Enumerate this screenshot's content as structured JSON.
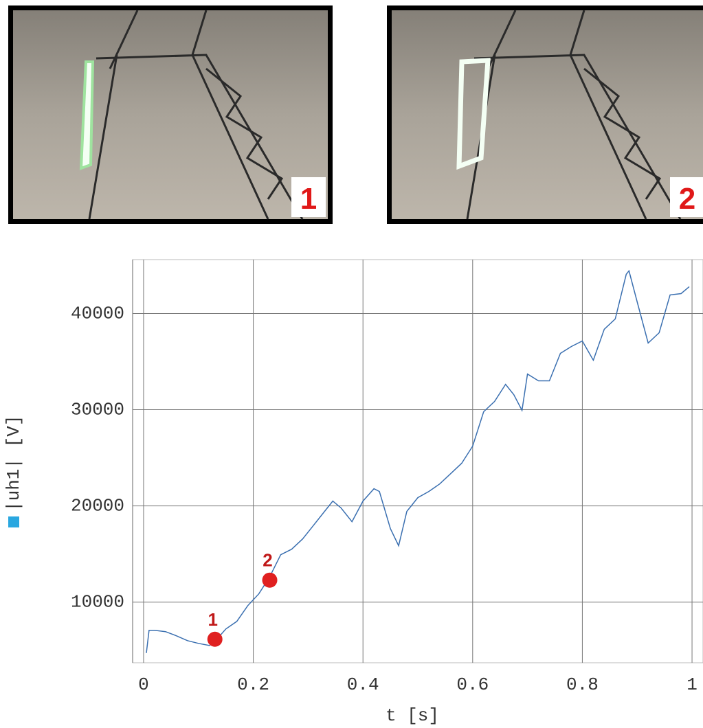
{
  "photos": [
    {
      "label": "1"
    },
    {
      "label": "2"
    }
  ],
  "chart_data": {
    "type": "line",
    "x_label": "t [s]",
    "y_label": "|uh1| [V]",
    "color": "#3a6fb0",
    "x": [
      0.005,
      0.01,
      0.02,
      0.04,
      0.06,
      0.08,
      0.1,
      0.12,
      0.13,
      0.15,
      0.17,
      0.19,
      0.21,
      0.23,
      0.25,
      0.27,
      0.29,
      0.31,
      0.33,
      0.345,
      0.36,
      0.38,
      0.4,
      0.42,
      0.43,
      0.45,
      0.465,
      0.48,
      0.5,
      0.52,
      0.54,
      0.56,
      0.58,
      0.6,
      0.62,
      0.64,
      0.66,
      0.675,
      0.69,
      0.7,
      0.72,
      0.74,
      0.76,
      0.78,
      0.8,
      0.82,
      0.84,
      0.86,
      0.88,
      0.885,
      0.9,
      0.92,
      0.94,
      0.96,
      0.98,
      0.995
    ],
    "values": [
      4714,
      7071,
      7071,
      6930,
      6500,
      6000,
      5714,
      5500,
      5930,
      7214,
      8000,
      9640,
      10860,
      12640,
      14930,
      15500,
      16570,
      18000,
      19430,
      20500,
      19790,
      18360,
      20500,
      21790,
      21500,
      17640,
      15860,
      19430,
      20860,
      21500,
      22290,
      23360,
      24430,
      26210,
      29790,
      30860,
      32640,
      31570,
      29930,
      33710,
      33000,
      33000,
      35860,
      36570,
      37140,
      35140,
      38360,
      39430,
      44070,
      44430,
      41210,
      36930,
      38000,
      41930,
      42070,
      42790
    ],
    "xlim": [
      -0.02,
      1.02
    ],
    "ylim": [
      3700,
      45600
    ],
    "xticks": [
      0,
      0.2,
      0.4,
      0.6,
      0.8,
      1
    ],
    "yticks": [
      10000,
      20000,
      30000,
      40000
    ],
    "grid": true,
    "annotations": [
      {
        "label": "1",
        "x": 0.13,
        "y": 6143
      },
      {
        "label": "2",
        "x": 0.23,
        "y": 12286
      }
    ]
  }
}
